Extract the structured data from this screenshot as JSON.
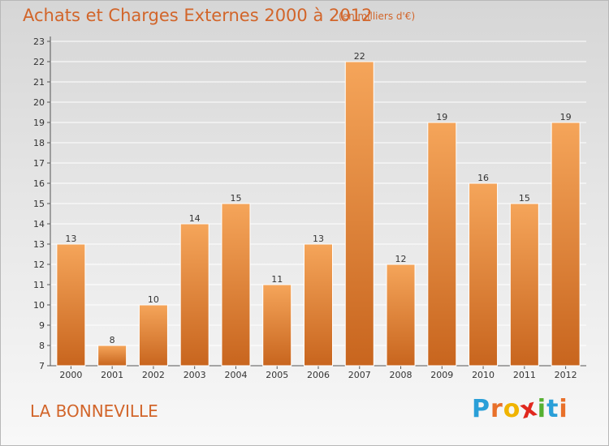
{
  "header": {
    "title": "Achats et Charges Externes 2000 à 2012",
    "subtitle": "(en milliers d'€)"
  },
  "footer": {
    "town": "LA BONNEVILLE",
    "logo_letters": [
      "P",
      "r",
      "o",
      "x",
      "i",
      "t",
      "i"
    ],
    "logo_colors": [
      "#2a9fd8",
      "#e8702a",
      "#f0b400",
      "#e0281e",
      "#55b030",
      "#2a9fd8",
      "#e8702a"
    ]
  },
  "colors": {
    "title": "#d2652a",
    "bar_top": "#f5a55a",
    "bar_bottom": "#c8651e",
    "axis": "#555555",
    "grid": "#ffffff"
  },
  "chart_data": {
    "type": "bar",
    "title": "Achats et Charges Externes 2000 à 2012",
    "subtitle": "(en milliers d'€)",
    "xlabel": "",
    "ylabel": "",
    "categories": [
      "2000",
      "2001",
      "2002",
      "2003",
      "2004",
      "2005",
      "2006",
      "2007",
      "2008",
      "2009",
      "2010",
      "2011",
      "2012"
    ],
    "values": [
      13,
      8,
      10,
      14,
      15,
      11,
      13,
      22,
      12,
      19,
      16,
      15,
      19
    ],
    "ylim": [
      7,
      23
    ],
    "yticks": [
      "7",
      "8",
      "9",
      "10",
      "11",
      "12",
      "13",
      "14",
      "15",
      "16",
      "17",
      "18",
      "19",
      "20",
      "21",
      "22",
      "23"
    ],
    "grid": true,
    "legend": "none"
  }
}
